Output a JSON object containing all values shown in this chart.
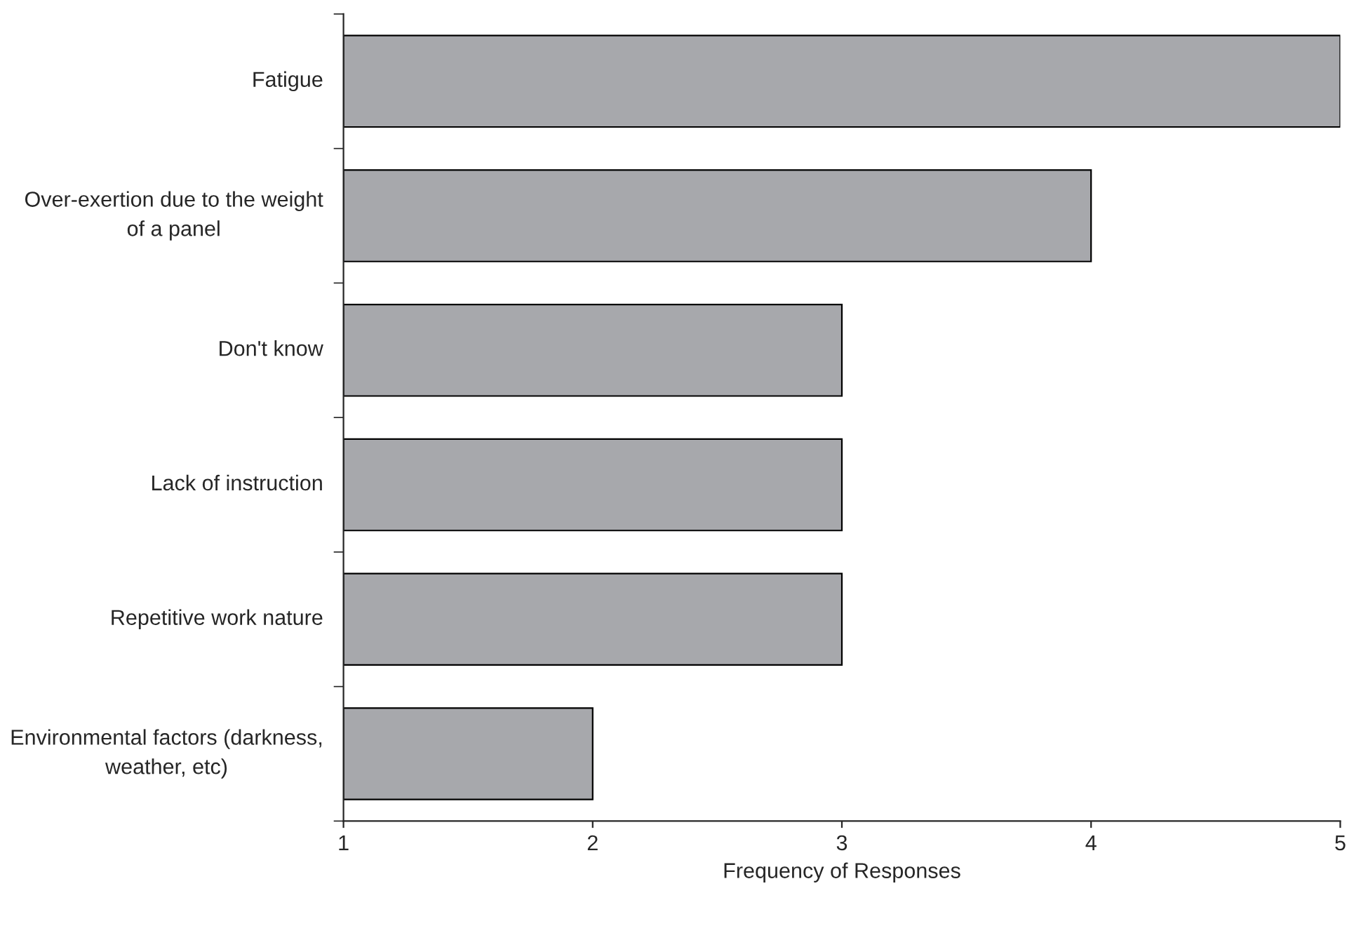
{
  "chart_data": {
    "type": "bar",
    "orientation": "horizontal",
    "xlabel": "Frequency of Responses",
    "categories": [
      "Fatigue",
      "Over-exertion due to the weight of a panel",
      "Don't know",
      "Lack of instruction",
      "Repetitive work nature",
      "Environmental factors (darkness, weather, etc)"
    ],
    "values": [
      5,
      4,
      3,
      3,
      3,
      2
    ],
    "color": "#a7a8ac",
    "xlim": [
      1,
      5
    ],
    "xticks": [
      1,
      2,
      3,
      4,
      5
    ],
    "grid": false,
    "legend": false
  }
}
